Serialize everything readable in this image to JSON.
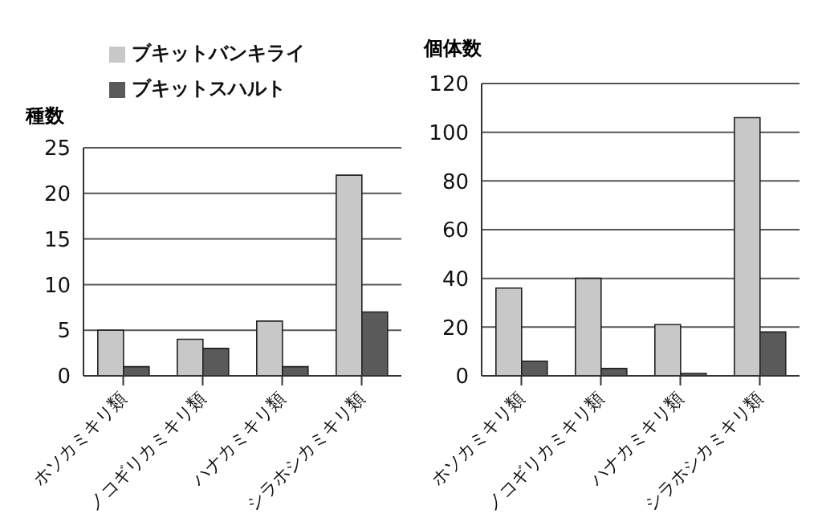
{
  "chart_data": [
    {
      "type": "bar",
      "ylabel": "種数",
      "categories": [
        "ホソカミキリ類",
        "ノコギリカミキリ類",
        "ハナカミキリ類",
        "シラホシカミキリ類"
      ],
      "series": [
        {
          "name": "ブキットバンキライ",
          "color": "#c8c8c8",
          "values": [
            5,
            4,
            6,
            22
          ]
        },
        {
          "name": "ブキットスハルト",
          "color": "#5a5a5a",
          "values": [
            1,
            3,
            1,
            7
          ]
        }
      ],
      "ylim": [
        0,
        25
      ],
      "yticks": [
        0,
        5,
        10,
        15,
        20,
        25
      ],
      "grid": "y",
      "legend": "top"
    },
    {
      "type": "bar",
      "ylabel": "個体数",
      "categories": [
        "ホソカミキリ類",
        "ノコギリカミキリ類",
        "ハナカミキリ類",
        "シラホシカミキリ類"
      ],
      "series": [
        {
          "color": "#c8c8c8",
          "values": [
            36,
            40,
            21,
            106
          ]
        },
        {
          "color": "#5a5a5a",
          "values": [
            6,
            3,
            1,
            18
          ]
        }
      ],
      "ylim": [
        0,
        120
      ],
      "yticks": [
        0,
        20,
        40,
        60,
        80,
        100,
        120
      ],
      "grid": "y"
    }
  ]
}
